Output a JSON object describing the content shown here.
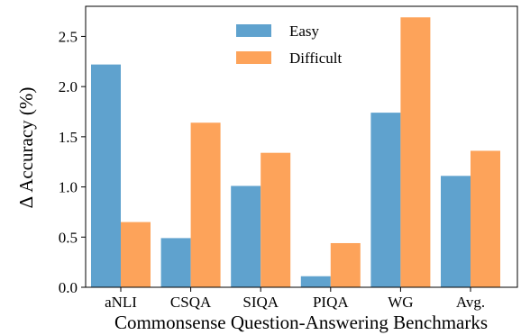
{
  "chart_data": {
    "type": "bar",
    "categories": [
      "aNLI",
      "CSQA",
      "SIQA",
      "PIQA",
      "WG",
      "Avg."
    ],
    "series": [
      {
        "name": "Easy",
        "color": "#5fa2ce",
        "values": [
          2.22,
          0.49,
          1.01,
          0.11,
          1.74,
          1.11
        ]
      },
      {
        "name": "Difficult",
        "color": "#fda35a",
        "values": [
          0.65,
          1.64,
          1.34,
          0.44,
          2.69,
          1.36
        ]
      }
    ],
    "xlabel": "Commonsense Question-Answering Benchmarks",
    "ylabel": "Δ Accuracy (%)",
    "ylim": [
      0,
      2.8
    ],
    "yticks": [
      0.0,
      0.5,
      1.0,
      1.5,
      2.0,
      2.5
    ],
    "ytick_labels": [
      "0.0",
      "0.5",
      "1.0",
      "1.5",
      "2.0",
      "2.5"
    ],
    "grid": false,
    "legend": "top-center"
  }
}
